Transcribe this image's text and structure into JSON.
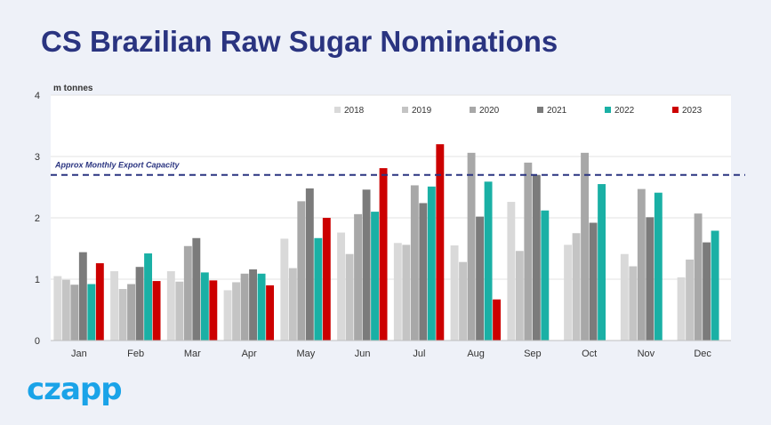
{
  "page_title": "CS Brazilian Raw Sugar Nominations",
  "logo_text": "czapp",
  "colors": {
    "title": "#2a3480",
    "capacity_line": "#2a3480",
    "logo": "#1aa3e8"
  },
  "chart_data": {
    "type": "bar",
    "ylabel": "m tonnes",
    "ylim": [
      0,
      4
    ],
    "yticks": [
      0,
      1,
      2,
      3,
      4
    ],
    "grid": true,
    "legend_position": "top-right",
    "categories": [
      "Jan",
      "Feb",
      "Mar",
      "Apr",
      "May",
      "Jun",
      "Jul",
      "Aug",
      "Sep",
      "Oct",
      "Nov",
      "Dec"
    ],
    "series": [
      {
        "name": "2018",
        "color": "#d9d9d9",
        "values": [
          1.05,
          1.13,
          1.13,
          0.82,
          1.66,
          1.76,
          1.59,
          1.55,
          2.26,
          1.56,
          1.41,
          1.03
        ]
      },
      {
        "name": "2019",
        "color": "#c4c4c4",
        "values": [
          0.99,
          0.84,
          0.96,
          0.95,
          1.18,
          1.41,
          1.56,
          1.28,
          1.46,
          1.75,
          1.21,
          1.32
        ]
      },
      {
        "name": "2020",
        "color": "#a8a8a8",
        "values": [
          0.91,
          0.92,
          1.54,
          1.09,
          2.27,
          2.06,
          2.53,
          3.06,
          2.9,
          3.06,
          2.47,
          2.07
        ]
      },
      {
        "name": "2021",
        "color": "#7b7b7b",
        "values": [
          1.44,
          1.2,
          1.67,
          1.16,
          2.48,
          2.46,
          2.24,
          2.02,
          2.7,
          1.92,
          2.01,
          1.6
        ]
      },
      {
        "name": "2022",
        "color": "#1ab0a5",
        "values": [
          0.92,
          1.42,
          1.11,
          1.09,
          1.67,
          2.1,
          2.51,
          2.59,
          2.12,
          2.55,
          2.41,
          1.79
        ]
      },
      {
        "name": "2023",
        "color": "#cc0000",
        "values": [
          1.26,
          0.97,
          0.98,
          0.9,
          2.0,
          2.81,
          3.2,
          0.67,
          null,
          null,
          null,
          null
        ]
      }
    ],
    "reference_line": {
      "label": "Approx Monthly Export Capacity",
      "value": 2.7
    }
  }
}
